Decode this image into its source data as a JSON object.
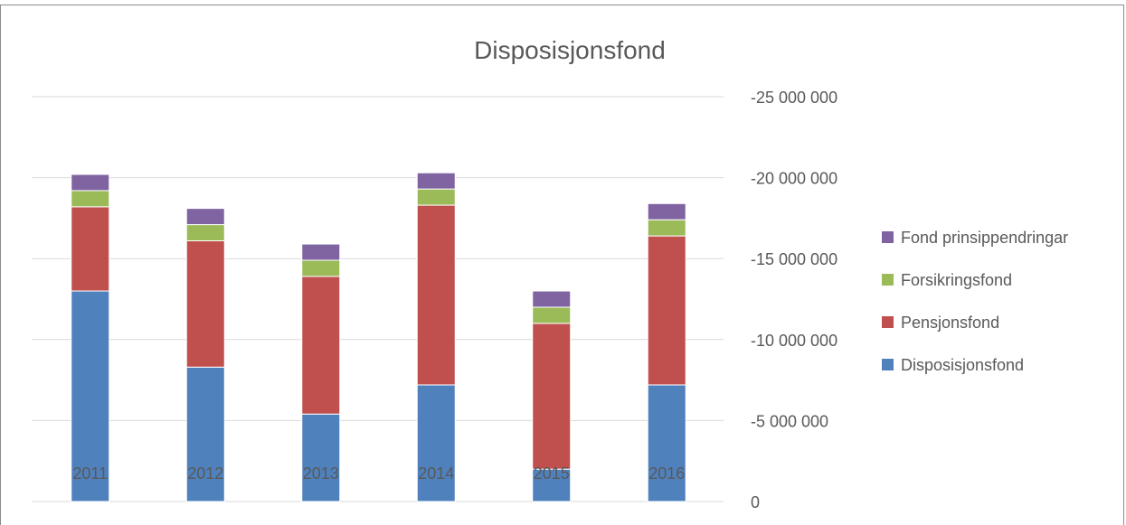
{
  "chart_data": {
    "type": "bar",
    "stacked": true,
    "title": "Disposisjonsfond",
    "xlabel": "",
    "ylabel": "",
    "categories": [
      "2011",
      "2012",
      "2013",
      "2014",
      "2015",
      "2016"
    ],
    "series": [
      {
        "name": "Disposisjonsfond",
        "color": "#4F81BD",
        "values": [
          -13000000,
          -8300000,
          -5400000,
          -7200000,
          -2000000,
          -7200000
        ]
      },
      {
        "name": "Pensjonsfond",
        "color": "#C0504D",
        "values": [
          -5200000,
          -7800000,
          -8500000,
          -11100000,
          -9000000,
          -9200000
        ]
      },
      {
        "name": "Forsikringsfond",
        "color": "#9BBB59",
        "values": [
          -1000000,
          -1000000,
          -1000000,
          -1000000,
          -1000000,
          -1000000
        ]
      },
      {
        "name": "Fond prinsippendringar",
        "color": "#8064A2",
        "values": [
          -1000000,
          -1000000,
          -1000000,
          -1000000,
          -1000000,
          -1000000
        ]
      }
    ],
    "legend_order": [
      "Fond prinsippendringar",
      "Forsikringsfond",
      "Pensjonsfond",
      "Disposisjonsfond"
    ],
    "legend_position": "right",
    "y_ticks": [
      {
        "value": 0,
        "label": "0"
      },
      {
        "value": -5000000,
        "label": "-5 000 000"
      },
      {
        "value": -10000000,
        "label": "-10 000 000"
      },
      {
        "value": -15000000,
        "label": "-15 000 000"
      },
      {
        "value": -20000000,
        "label": "-20 000 000"
      },
      {
        "value": -25000000,
        "label": "-25 000 000"
      }
    ],
    "ylim": [
      0,
      -25000000
    ],
    "y_axis_side": "right",
    "y_axis_reversed": true,
    "grid": true,
    "gridline_color": "#D9D9D9"
  }
}
